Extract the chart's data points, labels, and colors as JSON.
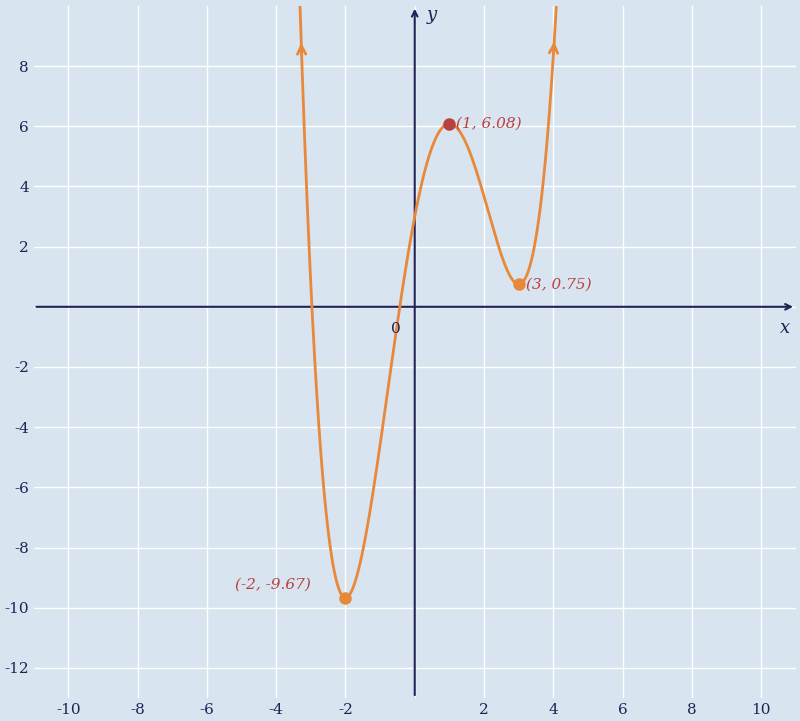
{
  "title": "",
  "xlim": [
    -11,
    11
  ],
  "ylim": [
    -13,
    10
  ],
  "xticks": [
    -10,
    -8,
    -6,
    -4,
    -2,
    0,
    2,
    4,
    6,
    8,
    10
  ],
  "yticks": [
    -12,
    -10,
    -8,
    -6,
    -4,
    -2,
    0,
    2,
    4,
    6,
    8
  ],
  "xlabel": "x",
  "ylabel": "y",
  "curve_color": "#E8883A",
  "dot_color_min": "#E8883A",
  "dot_color_max": "#B94040",
  "bg_color": "#D8E4EF",
  "grid_color": "#FFFFFF",
  "axis_color": "#222255",
  "label_color_red": "#B94040",
  "figsize": [
    8.0,
    7.21
  ],
  "dpi": 100
}
